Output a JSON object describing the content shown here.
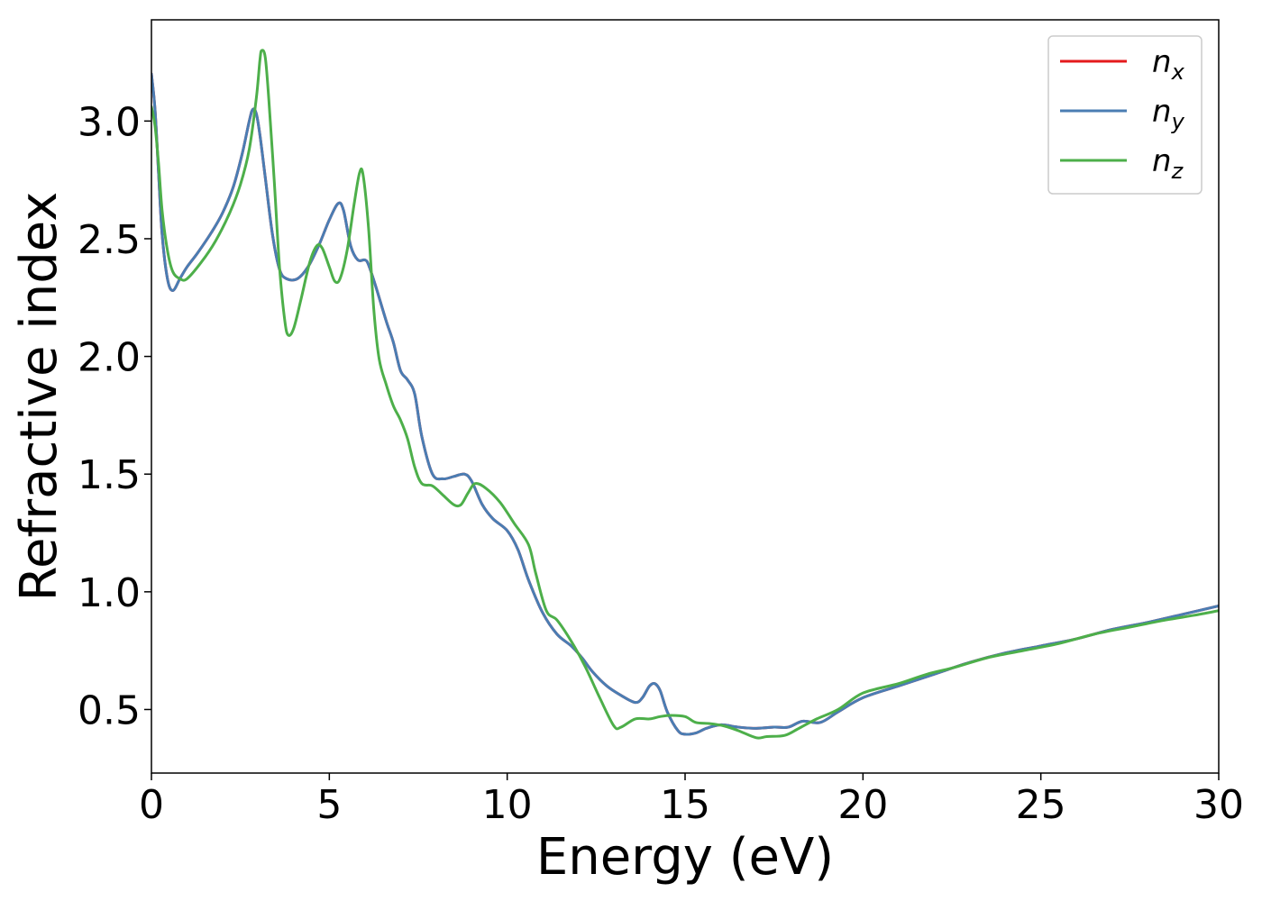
{
  "chart_data": {
    "type": "line",
    "title": "",
    "xlabel": "Energy (eV)",
    "ylabel": "Refractive index",
    "xlim": [
      0,
      30
    ],
    "ylim": [
      0.23,
      3.43
    ],
    "xticks": [
      0,
      5,
      10,
      15,
      20,
      25,
      30
    ],
    "xtick_labels": [
      "0",
      "5",
      "10",
      "15",
      "20",
      "25",
      "30"
    ],
    "yticks": [
      0.5,
      1.0,
      1.5,
      2.0,
      2.5,
      3.0
    ],
    "ytick_labels": [
      "0.5",
      "1.0",
      "1.5",
      "2.0",
      "2.5",
      "3.0"
    ],
    "grid": false,
    "legend_position": "top-right",
    "series": [
      {
        "name": "n_x",
        "label_base": "n",
        "label_sub": "x",
        "color": "#e41a1c",
        "points": [
          [
            0,
            3.2
          ],
          [
            0.1,
            3.05
          ],
          [
            0.2,
            2.78
          ],
          [
            0.3,
            2.52
          ],
          [
            0.45,
            2.33
          ],
          [
            0.6,
            2.28
          ],
          [
            0.8,
            2.33
          ],
          [
            1.0,
            2.38
          ],
          [
            1.3,
            2.44
          ],
          [
            1.7,
            2.53
          ],
          [
            2.0,
            2.61
          ],
          [
            2.3,
            2.72
          ],
          [
            2.55,
            2.86
          ],
          [
            2.75,
            3.0
          ],
          [
            2.85,
            3.05
          ],
          [
            2.95,
            3.03
          ],
          [
            3.05,
            2.94
          ],
          [
            3.2,
            2.76
          ],
          [
            3.4,
            2.52
          ],
          [
            3.6,
            2.37
          ],
          [
            3.8,
            2.33
          ],
          [
            4.1,
            2.33
          ],
          [
            4.4,
            2.38
          ],
          [
            4.7,
            2.47
          ],
          [
            5.0,
            2.58
          ],
          [
            5.25,
            2.65
          ],
          [
            5.4,
            2.62
          ],
          [
            5.6,
            2.47
          ],
          [
            5.8,
            2.41
          ],
          [
            6.0,
            2.41
          ],
          [
            6.1,
            2.39
          ],
          [
            6.3,
            2.3
          ],
          [
            6.6,
            2.15
          ],
          [
            6.8,
            2.06
          ],
          [
            7.0,
            1.94
          ],
          [
            7.2,
            1.9
          ],
          [
            7.4,
            1.84
          ],
          [
            7.6,
            1.66
          ],
          [
            7.9,
            1.5
          ],
          [
            8.2,
            1.48
          ],
          [
            8.5,
            1.49
          ],
          [
            8.8,
            1.5
          ],
          [
            9.0,
            1.47
          ],
          [
            9.3,
            1.37
          ],
          [
            9.6,
            1.31
          ],
          [
            10.0,
            1.26
          ],
          [
            10.3,
            1.18
          ],
          [
            10.6,
            1.05
          ],
          [
            11.0,
            0.91
          ],
          [
            11.4,
            0.82
          ],
          [
            11.8,
            0.77
          ],
          [
            12.1,
            0.72
          ],
          [
            12.4,
            0.66
          ],
          [
            12.8,
            0.6
          ],
          [
            13.2,
            0.56
          ],
          [
            13.6,
            0.53
          ],
          [
            13.8,
            0.55
          ],
          [
            14.0,
            0.6
          ],
          [
            14.15,
            0.61
          ],
          [
            14.3,
            0.58
          ],
          [
            14.5,
            0.49
          ],
          [
            14.8,
            0.41
          ],
          [
            15.0,
            0.395
          ],
          [
            15.3,
            0.4
          ],
          [
            15.6,
            0.42
          ],
          [
            16.0,
            0.435
          ],
          [
            16.5,
            0.425
          ],
          [
            17.0,
            0.42
          ],
          [
            17.5,
            0.425
          ],
          [
            17.9,
            0.425
          ],
          [
            18.3,
            0.45
          ],
          [
            18.8,
            0.445
          ],
          [
            19.3,
            0.49
          ],
          [
            20.0,
            0.55
          ],
          [
            21.0,
            0.6
          ],
          [
            22.0,
            0.65
          ],
          [
            23.0,
            0.7
          ],
          [
            24.0,
            0.74
          ],
          [
            25.0,
            0.77
          ],
          [
            26.0,
            0.8
          ],
          [
            27.0,
            0.84
          ],
          [
            28.0,
            0.87
          ],
          [
            29.0,
            0.905
          ],
          [
            30.0,
            0.94
          ]
        ]
      },
      {
        "name": "n_y",
        "label_base": "n",
        "label_sub": "y",
        "color": "#4a7db3",
        "points": [
          [
            0,
            3.2
          ],
          [
            0.1,
            3.05
          ],
          [
            0.2,
            2.78
          ],
          [
            0.3,
            2.52
          ],
          [
            0.45,
            2.33
          ],
          [
            0.6,
            2.28
          ],
          [
            0.8,
            2.33
          ],
          [
            1.0,
            2.38
          ],
          [
            1.3,
            2.44
          ],
          [
            1.7,
            2.53
          ],
          [
            2.0,
            2.61
          ],
          [
            2.3,
            2.72
          ],
          [
            2.55,
            2.86
          ],
          [
            2.75,
            3.0
          ],
          [
            2.85,
            3.05
          ],
          [
            2.95,
            3.03
          ],
          [
            3.05,
            2.94
          ],
          [
            3.2,
            2.76
          ],
          [
            3.4,
            2.52
          ],
          [
            3.6,
            2.37
          ],
          [
            3.8,
            2.33
          ],
          [
            4.1,
            2.33
          ],
          [
            4.4,
            2.38
          ],
          [
            4.7,
            2.47
          ],
          [
            5.0,
            2.58
          ],
          [
            5.25,
            2.65
          ],
          [
            5.4,
            2.62
          ],
          [
            5.6,
            2.47
          ],
          [
            5.8,
            2.41
          ],
          [
            6.0,
            2.41
          ],
          [
            6.1,
            2.39
          ],
          [
            6.3,
            2.3
          ],
          [
            6.6,
            2.15
          ],
          [
            6.8,
            2.06
          ],
          [
            7.0,
            1.94
          ],
          [
            7.2,
            1.9
          ],
          [
            7.4,
            1.84
          ],
          [
            7.6,
            1.66
          ],
          [
            7.9,
            1.5
          ],
          [
            8.2,
            1.48
          ],
          [
            8.5,
            1.49
          ],
          [
            8.8,
            1.5
          ],
          [
            9.0,
            1.47
          ],
          [
            9.3,
            1.37
          ],
          [
            9.6,
            1.31
          ],
          [
            10.0,
            1.26
          ],
          [
            10.3,
            1.18
          ],
          [
            10.6,
            1.05
          ],
          [
            11.0,
            0.91
          ],
          [
            11.4,
            0.82
          ],
          [
            11.8,
            0.77
          ],
          [
            12.1,
            0.72
          ],
          [
            12.4,
            0.66
          ],
          [
            12.8,
            0.6
          ],
          [
            13.2,
            0.56
          ],
          [
            13.6,
            0.53
          ],
          [
            13.8,
            0.55
          ],
          [
            14.0,
            0.6
          ],
          [
            14.15,
            0.61
          ],
          [
            14.3,
            0.58
          ],
          [
            14.5,
            0.49
          ],
          [
            14.8,
            0.41
          ],
          [
            15.0,
            0.395
          ],
          [
            15.3,
            0.4
          ],
          [
            15.6,
            0.42
          ],
          [
            16.0,
            0.435
          ],
          [
            16.5,
            0.425
          ],
          [
            17.0,
            0.42
          ],
          [
            17.5,
            0.425
          ],
          [
            17.9,
            0.425
          ],
          [
            18.3,
            0.45
          ],
          [
            18.8,
            0.445
          ],
          [
            19.3,
            0.49
          ],
          [
            20.0,
            0.55
          ],
          [
            21.0,
            0.6
          ],
          [
            22.0,
            0.65
          ],
          [
            23.0,
            0.7
          ],
          [
            24.0,
            0.74
          ],
          [
            25.0,
            0.77
          ],
          [
            26.0,
            0.8
          ],
          [
            27.0,
            0.84
          ],
          [
            28.0,
            0.87
          ],
          [
            29.0,
            0.905
          ],
          [
            30.0,
            0.94
          ]
        ]
      },
      {
        "name": "n_z",
        "label_base": "n",
        "label_sub": "z",
        "color": "#4daf4a",
        "points": [
          [
            0,
            3.06
          ],
          [
            0.1,
            2.98
          ],
          [
            0.2,
            2.82
          ],
          [
            0.3,
            2.62
          ],
          [
            0.45,
            2.45
          ],
          [
            0.6,
            2.36
          ],
          [
            0.8,
            2.33
          ],
          [
            1.0,
            2.33
          ],
          [
            1.4,
            2.4
          ],
          [
            1.8,
            2.49
          ],
          [
            2.2,
            2.61
          ],
          [
            2.5,
            2.73
          ],
          [
            2.75,
            2.88
          ],
          [
            2.95,
            3.1
          ],
          [
            3.05,
            3.26
          ],
          [
            3.1,
            3.3
          ],
          [
            3.2,
            3.27
          ],
          [
            3.3,
            3.09
          ],
          [
            3.45,
            2.75
          ],
          [
            3.6,
            2.38
          ],
          [
            3.75,
            2.15
          ],
          [
            3.85,
            2.09
          ],
          [
            4.0,
            2.12
          ],
          [
            4.2,
            2.24
          ],
          [
            4.45,
            2.4
          ],
          [
            4.65,
            2.47
          ],
          [
            4.8,
            2.46
          ],
          [
            5.0,
            2.38
          ],
          [
            5.15,
            2.32
          ],
          [
            5.3,
            2.33
          ],
          [
            5.5,
            2.45
          ],
          [
            5.7,
            2.65
          ],
          [
            5.85,
            2.78
          ],
          [
            5.95,
            2.77
          ],
          [
            6.1,
            2.55
          ],
          [
            6.25,
            2.2
          ],
          [
            6.4,
            1.99
          ],
          [
            6.6,
            1.88
          ],
          [
            6.8,
            1.79
          ],
          [
            7.0,
            1.73
          ],
          [
            7.2,
            1.65
          ],
          [
            7.4,
            1.53
          ],
          [
            7.6,
            1.46
          ],
          [
            7.9,
            1.45
          ],
          [
            8.2,
            1.41
          ],
          [
            8.5,
            1.37
          ],
          [
            8.7,
            1.37
          ],
          [
            8.9,
            1.42
          ],
          [
            9.1,
            1.46
          ],
          [
            9.4,
            1.44
          ],
          [
            9.8,
            1.38
          ],
          [
            10.2,
            1.29
          ],
          [
            10.6,
            1.2
          ],
          [
            10.8,
            1.08
          ],
          [
            11.1,
            0.92
          ],
          [
            11.4,
            0.88
          ],
          [
            11.8,
            0.79
          ],
          [
            12.2,
            0.68
          ],
          [
            12.6,
            0.55
          ],
          [
            13.0,
            0.43
          ],
          [
            13.2,
            0.425
          ],
          [
            13.6,
            0.46
          ],
          [
            14.0,
            0.46
          ],
          [
            14.3,
            0.47
          ],
          [
            14.6,
            0.475
          ],
          [
            15.0,
            0.47
          ],
          [
            15.3,
            0.445
          ],
          [
            15.7,
            0.44
          ],
          [
            16.1,
            0.43
          ],
          [
            16.5,
            0.41
          ],
          [
            17.0,
            0.38
          ],
          [
            17.3,
            0.385
          ],
          [
            17.8,
            0.39
          ],
          [
            18.2,
            0.42
          ],
          [
            18.7,
            0.46
          ],
          [
            19.3,
            0.5
          ],
          [
            20.0,
            0.57
          ],
          [
            21.0,
            0.61
          ],
          [
            21.8,
            0.65
          ],
          [
            22.6,
            0.68
          ],
          [
            23.5,
            0.72
          ],
          [
            24.5,
            0.75
          ],
          [
            25.5,
            0.78
          ],
          [
            26.5,
            0.82
          ],
          [
            27.5,
            0.85
          ],
          [
            28.5,
            0.88
          ],
          [
            29.3,
            0.9
          ],
          [
            30.0,
            0.92
          ]
        ]
      }
    ]
  }
}
